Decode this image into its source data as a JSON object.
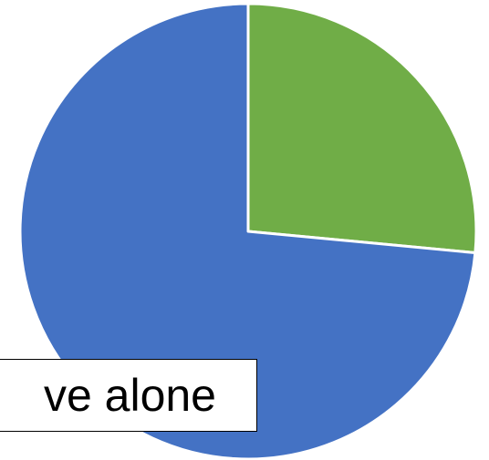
{
  "chart_data": {
    "type": "pie",
    "slices": [
      {
        "value": 26.5,
        "color": "#70AD47"
      },
      {
        "value": 73.5,
        "color": "#4472C4"
      }
    ],
    "start_angle": "top",
    "direction": "clockwise",
    "title": "",
    "legend": "none"
  },
  "annotation": {
    "text": "ve alone"
  }
}
